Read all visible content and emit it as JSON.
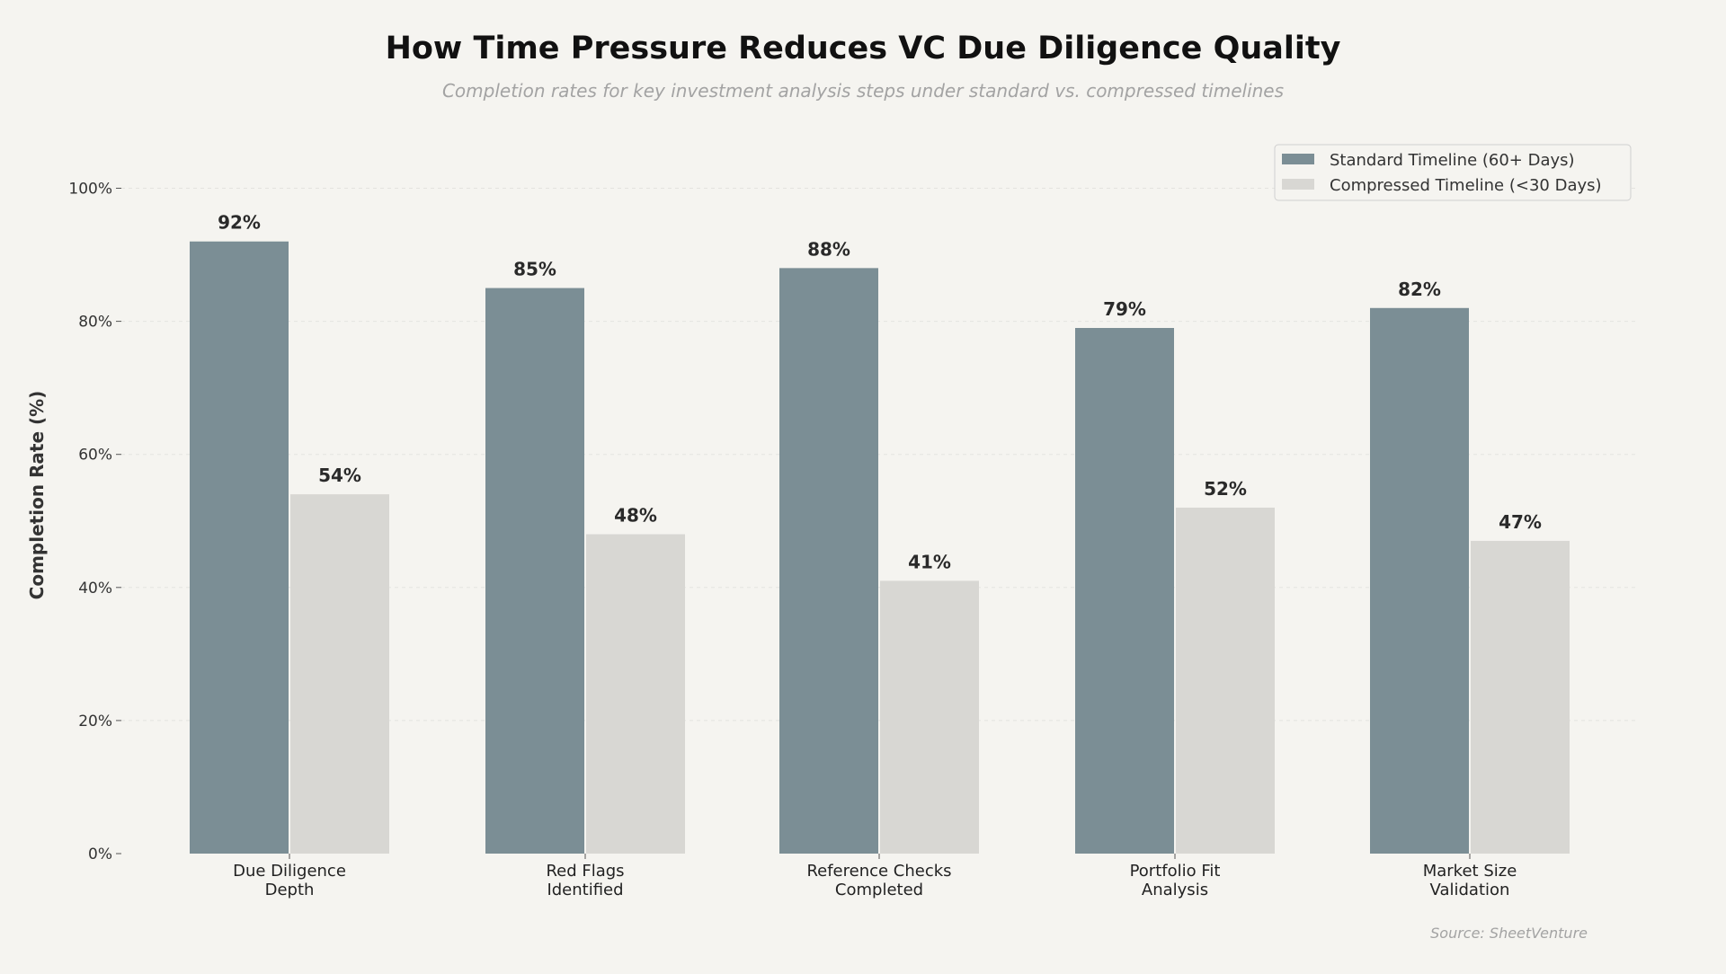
{
  "chart_data": {
    "type": "bar",
    "title": "How Time Pressure Reduces VC Due Diligence Quality",
    "subtitle": "Completion rates for key investment analysis steps under standard vs. compressed timelines",
    "xlabel": "",
    "ylabel": "Completion Rate (%)",
    "ylim": [
      0,
      100
    ],
    "yticks": [
      "0%",
      "20%",
      "40%",
      "60%",
      "80%",
      "100%"
    ],
    "grid": true,
    "legend_position": "top-right",
    "categories": [
      [
        "Due Diligence",
        "Depth"
      ],
      [
        "Red Flags",
        "Identified"
      ],
      [
        "Reference Checks",
        "Completed"
      ],
      [
        "Portfolio Fit",
        "Analysis"
      ],
      [
        "Market Size",
        "Validation"
      ]
    ],
    "series": [
      {
        "name": "Standard Timeline (60+ Days)",
        "color": "#7b8e95",
        "values": [
          92,
          85,
          88,
          79,
          82
        ]
      },
      {
        "name": "Compressed Timeline (<30 Days)",
        "color": "#d8d7d3",
        "values": [
          54,
          48,
          41,
          52,
          47
        ]
      }
    ],
    "source": "Source: SheetVenture"
  }
}
